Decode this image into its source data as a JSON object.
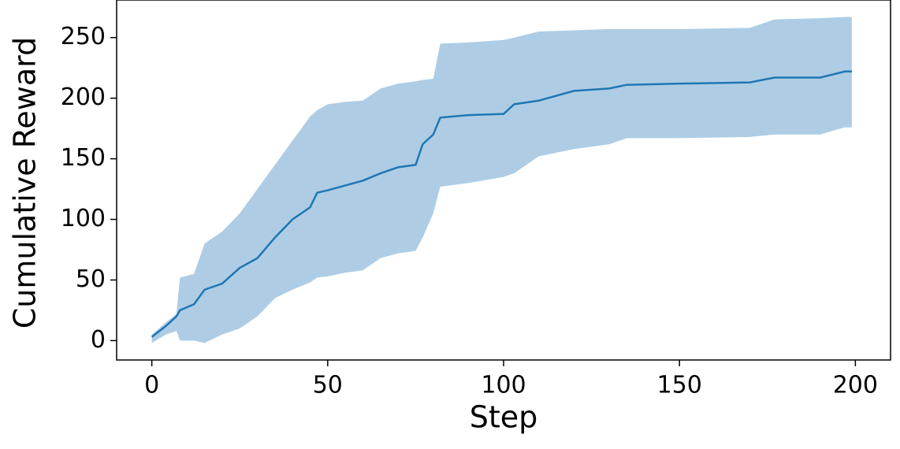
{
  "chart_data": {
    "type": "line",
    "xlabel": "Step",
    "ylabel": "Cumulative Reward",
    "x": [
      0,
      4,
      7,
      8,
      12,
      15,
      20,
      25,
      30,
      35,
      40,
      45,
      47,
      50,
      55,
      60,
      65,
      70,
      75,
      77,
      80,
      82,
      90,
      100,
      103,
      110,
      120,
      130,
      135,
      150,
      170,
      177,
      190,
      197,
      199
    ],
    "series": [
      {
        "color": "#1f77b4",
        "values": [
          3,
          12,
          20,
          25,
          30,
          42,
          47,
          60,
          68,
          85,
          100,
          110,
          122,
          124,
          128,
          132,
          138,
          143,
          145,
          162,
          170,
          184,
          186,
          187,
          195,
          198,
          206,
          208,
          211,
          212,
          213,
          217,
          217,
          222,
          222
        ]
      }
    ],
    "band": {
      "color": "#aecde5",
      "upper": [
        5,
        15,
        22,
        52,
        55,
        80,
        90,
        105,
        125,
        145,
        165,
        185,
        190,
        195,
        197,
        198,
        208,
        212,
        214,
        215,
        216,
        245,
        246,
        248,
        250,
        255,
        256,
        257,
        257,
        257,
        258,
        265,
        266,
        267,
        267
      ],
      "lower": [
        -2,
        5,
        8,
        0,
        0,
        -2,
        5,
        10,
        20,
        35,
        42,
        48,
        52,
        53,
        56,
        58,
        68,
        72,
        74,
        85,
        105,
        127,
        130,
        135,
        138,
        152,
        158,
        162,
        167,
        167,
        168,
        170,
        170,
        176,
        176
      ]
    },
    "xlim": [
      -10,
      210
    ],
    "ylim": [
      -16,
      281
    ],
    "xticks": [
      0,
      50,
      100,
      150,
      200
    ],
    "yticks": [
      0,
      50,
      100,
      150,
      200,
      250
    ]
  }
}
